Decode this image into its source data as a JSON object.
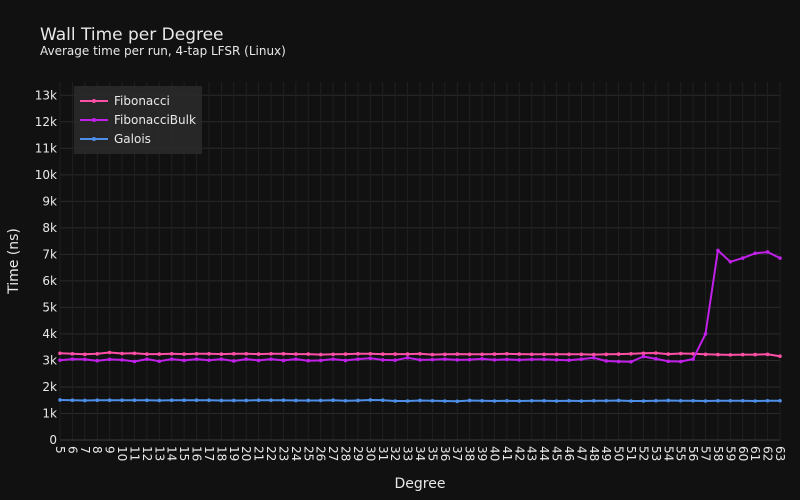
{
  "chart_data": {
    "type": "line",
    "title": "Wall Time per Degree",
    "subtitle": "Average time per run, 4-tap LFSR (Linux)",
    "xlabel": "Degree",
    "ylabel": "Time (ns)",
    "ylim": [
      0,
      13500
    ],
    "y_ticks": [
      0,
      1000,
      2000,
      3000,
      4000,
      5000,
      6000,
      7000,
      8000,
      9000,
      10000,
      11000,
      12000,
      13000
    ],
    "y_tick_labels": [
      "0",
      "1k",
      "2k",
      "3k",
      "4k",
      "5k",
      "6k",
      "7k",
      "8k",
      "9k",
      "10k",
      "11k",
      "12k",
      "13k"
    ],
    "grid": true,
    "legend_position": "top-left",
    "x": [
      5,
      6,
      7,
      8,
      9,
      10,
      11,
      12,
      13,
      14,
      15,
      16,
      17,
      18,
      19,
      20,
      21,
      22,
      23,
      24,
      25,
      26,
      27,
      28,
      29,
      30,
      31,
      32,
      33,
      34,
      35,
      36,
      37,
      38,
      39,
      40,
      41,
      42,
      43,
      44,
      45,
      46,
      47,
      48,
      49,
      50,
      51,
      52,
      53,
      54,
      55,
      56,
      57,
      58,
      59,
      60,
      61,
      62,
      63
    ],
    "series": [
      {
        "name": "Fibonacci",
        "color": "#ff4fa7",
        "values": [
          3270,
          3250,
          3230,
          3250,
          3300,
          3260,
          3270,
          3240,
          3240,
          3250,
          3240,
          3250,
          3250,
          3240,
          3250,
          3250,
          3240,
          3250,
          3250,
          3240,
          3240,
          3220,
          3230,
          3240,
          3250,
          3250,
          3240,
          3240,
          3240,
          3250,
          3220,
          3230,
          3240,
          3230,
          3230,
          3240,
          3250,
          3240,
          3230,
          3230,
          3230,
          3230,
          3230,
          3220,
          3230,
          3240,
          3250,
          3270,
          3280,
          3240,
          3260,
          3250,
          3230,
          3220,
          3210,
          3220,
          3220,
          3230,
          3160
        ]
      },
      {
        "name": "FibonacciBulk",
        "color": "#c020e8",
        "values": [
          3010,
          3050,
          3040,
          2990,
          3040,
          3020,
          2960,
          3050,
          2970,
          3050,
          3000,
          3050,
          3010,
          3050,
          2980,
          3050,
          3000,
          3050,
          3000,
          3050,
          2990,
          3000,
          3050,
          3000,
          3050,
          3080,
          3020,
          3010,
          3100,
          3020,
          3030,
          3050,
          3020,
          3030,
          3060,
          3020,
          3040,
          3020,
          3040,
          3040,
          3020,
          3010,
          3050,
          3100,
          2980,
          2960,
          2950,
          3150,
          3060,
          2970,
          2960,
          3050,
          4000,
          7150,
          6720,
          6860,
          7040,
          7090,
          6860
        ]
      },
      {
        "name": "Galois",
        "color": "#4d8fe8",
        "values": [
          1510,
          1500,
          1490,
          1500,
          1500,
          1500,
          1500,
          1500,
          1490,
          1500,
          1500,
          1500,
          1500,
          1490,
          1490,
          1490,
          1500,
          1500,
          1500,
          1490,
          1490,
          1490,
          1500,
          1480,
          1490,
          1510,
          1500,
          1470,
          1470,
          1490,
          1480,
          1470,
          1460,
          1490,
          1480,
          1470,
          1480,
          1470,
          1480,
          1480,
          1470,
          1480,
          1470,
          1480,
          1480,
          1490,
          1470,
          1470,
          1480,
          1490,
          1480,
          1480,
          1470,
          1480,
          1480,
          1480,
          1470,
          1480,
          1480
        ]
      }
    ]
  }
}
